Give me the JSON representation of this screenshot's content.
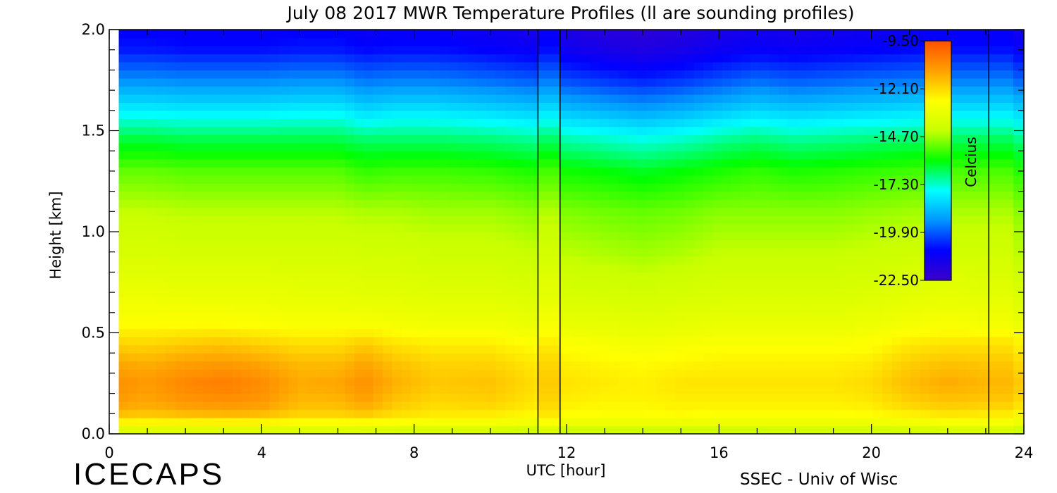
{
  "chart_data": {
    "type": "heatmap",
    "title": "July 08 2017 MWR Temperature Profiles (ll are sounding profiles)",
    "xlabel": "UTC [hour]",
    "ylabel": "Height [km]",
    "xlim": [
      0,
      24
    ],
    "ylim": [
      0,
      2
    ],
    "x_ticks": [
      0,
      4,
      8,
      12,
      16,
      20,
      24
    ],
    "y_ticks": [
      0,
      0.5,
      1,
      1.5,
      2
    ],
    "x_tick_labels": [
      "0",
      "4",
      "8",
      "12",
      "16",
      "20",
      "24"
    ],
    "y_tick_labels": [
      "0.0",
      "0.5",
      "1.0",
      "1.5",
      "2.0"
    ],
    "colorbar": {
      "label": "Celcius",
      "ticks": [
        -9.5,
        -12.1,
        -14.7,
        -17.3,
        -19.9,
        -22.5
      ],
      "tick_labels": [
        "-9.50",
        "-12.10",
        "-14.70",
        "-17.30",
        "-19.90",
        "-22.50"
      ],
      "range": [
        -22.5,
        -9.5
      ],
      "colors": [
        "#3a00c8",
        "#0000ff",
        "#0096ff",
        "#00ffff",
        "#00ff00",
        "#c8ff00",
        "#ffff00",
        "#ffa000",
        "#ff5000"
      ]
    },
    "no_data_x_range": [
      0,
      0.25
    ],
    "sounding_times": [
      11.25,
      11.83,
      23.08
    ],
    "sounding_segment": [
      11.25,
      11.83
    ],
    "profile_times": [
      0,
      1,
      2,
      3,
      4,
      5,
      6,
      6.7,
      7.5,
      8.5,
      10,
      11.25,
      13,
      14,
      15,
      16,
      17,
      18,
      19,
      20,
      21,
      22,
      23.08
    ],
    "heights": [
      0,
      0.05,
      0.1,
      0.15,
      0.25,
      0.35,
      0.45,
      0.55,
      0.7,
      0.9,
      1.1,
      1.3,
      1.45,
      1.6,
      1.75,
      1.9,
      2.0
    ],
    "temperature_profiles": [
      [
        -14.2,
        -12.8,
        -11.6,
        -11.0,
        -10.7,
        -11.2,
        -12.0,
        -12.8,
        -13.3,
        -13.9,
        -14.4,
        -15.2,
        -16.3,
        -17.8,
        -19.3,
        -20.6,
        -21.0
      ],
      [
        -14.2,
        -12.8,
        -11.8,
        -11.3,
        -11.0,
        -11.4,
        -12.1,
        -12.8,
        -13.3,
        -13.9,
        -14.4,
        -15.2,
        -16.3,
        -17.8,
        -19.3,
        -20.6,
        -21.0
      ],
      [
        -14.2,
        -12.8,
        -11.6,
        -11.0,
        -10.6,
        -11.1,
        -11.9,
        -12.8,
        -13.4,
        -14.0,
        -14.5,
        -15.3,
        -16.4,
        -17.9,
        -19.4,
        -20.7,
        -21.1
      ],
      [
        -14.2,
        -12.8,
        -11.5,
        -10.9,
        -10.4,
        -11.0,
        -11.8,
        -12.8,
        -13.4,
        -14.0,
        -14.5,
        -15.3,
        -16.4,
        -17.9,
        -19.4,
        -20.7,
        -21.1
      ],
      [
        -14.2,
        -12.8,
        -11.6,
        -11.0,
        -10.7,
        -11.2,
        -12.0,
        -12.9,
        -13.4,
        -14.0,
        -14.5,
        -15.3,
        -16.4,
        -17.9,
        -19.4,
        -20.7,
        -21.1
      ],
      [
        -14.2,
        -12.9,
        -12.0,
        -11.6,
        -11.3,
        -11.6,
        -12.2,
        -13.0,
        -13.5,
        -14.0,
        -14.5,
        -15.3,
        -16.4,
        -17.8,
        -19.3,
        -20.6,
        -21.0
      ],
      [
        -14.2,
        -12.9,
        -12.0,
        -11.6,
        -11.2,
        -11.6,
        -12.2,
        -13.0,
        -13.5,
        -14.0,
        -14.5,
        -15.3,
        -16.4,
        -17.8,
        -19.3,
        -20.6,
        -21.0
      ],
      [
        -14.2,
        -12.9,
        -11.8,
        -11.2,
        -10.8,
        -11.2,
        -11.9,
        -13.0,
        -13.6,
        -14.1,
        -14.6,
        -15.6,
        -16.6,
        -18.2,
        -19.6,
        -20.8,
        -21.2
      ],
      [
        -14.3,
        -13.0,
        -12.2,
        -11.8,
        -11.4,
        -11.7,
        -12.3,
        -13.1,
        -13.6,
        -14.1,
        -14.6,
        -15.5,
        -16.6,
        -18.0,
        -19.5,
        -20.7,
        -21.1
      ],
      [
        -14.4,
        -13.1,
        -12.4,
        -12.1,
        -11.8,
        -12.0,
        -12.5,
        -13.2,
        -13.7,
        -14.2,
        -14.7,
        -15.5,
        -16.6,
        -18.0,
        -19.5,
        -20.7,
        -21.1
      ],
      [
        -14.4,
        -13.1,
        -12.4,
        -12.0,
        -11.7,
        -12.0,
        -12.5,
        -13.2,
        -13.7,
        -14.2,
        -14.7,
        -15.6,
        -16.7,
        -18.2,
        -19.7,
        -20.9,
        -21.3
      ],
      [
        -14.6,
        -13.3,
        -12.7,
        -12.4,
        -12.2,
        -12.4,
        -12.8,
        -13.4,
        -13.9,
        -14.4,
        -14.9,
        -15.8,
        -16.9,
        -18.4,
        -19.9,
        -21.1,
        -21.5
      ],
      [
        -14.6,
        -13.3,
        -12.8,
        -12.6,
        -12.4,
        -12.6,
        -13.0,
        -13.5,
        -14.0,
        -14.6,
        -15.1,
        -16.0,
        -17.2,
        -18.8,
        -20.3,
        -21.5,
        -21.9
      ],
      [
        -14.6,
        -13.3,
        -12.8,
        -12.6,
        -12.5,
        -12.7,
        -13.1,
        -13.6,
        -14.1,
        -14.7,
        -15.2,
        -16.2,
        -17.4,
        -19.0,
        -20.5,
        -21.7,
        -22.1
      ],
      [
        -14.6,
        -13.3,
        -12.7,
        -12.5,
        -12.3,
        -12.6,
        -13.0,
        -13.5,
        -14.0,
        -14.6,
        -15.1,
        -16.0,
        -17.2,
        -18.8,
        -20.3,
        -21.5,
        -21.9
      ],
      [
        -14.6,
        -13.3,
        -12.8,
        -12.5,
        -12.3,
        -12.5,
        -12.9,
        -13.4,
        -13.9,
        -14.4,
        -14.9,
        -15.8,
        -16.9,
        -18.5,
        -20.0,
        -21.2,
        -21.6
      ],
      [
        -14.6,
        -13.3,
        -12.8,
        -12.5,
        -12.3,
        -12.5,
        -12.9,
        -13.4,
        -13.9,
        -14.4,
        -14.9,
        -15.6,
        -16.7,
        -18.2,
        -19.7,
        -21.0,
        -21.4
      ],
      [
        -14.5,
        -13.3,
        -12.8,
        -12.5,
        -12.3,
        -12.5,
        -12.9,
        -13.4,
        -13.9,
        -14.4,
        -14.9,
        -15.8,
        -16.9,
        -18.4,
        -19.9,
        -21.1,
        -21.5
      ],
      [
        -14.5,
        -13.3,
        -12.8,
        -12.5,
        -12.3,
        -12.5,
        -12.9,
        -13.4,
        -13.9,
        -14.4,
        -14.9,
        -15.7,
        -16.8,
        -18.3,
        -19.8,
        -21.0,
        -21.4
      ],
      [
        -14.5,
        -13.3,
        -12.7,
        -12.4,
        -12.1,
        -12.4,
        -12.8,
        -13.3,
        -13.8,
        -14.3,
        -14.8,
        -15.6,
        -16.7,
        -18.2,
        -19.7,
        -20.9,
        -21.3
      ],
      [
        -14.4,
        -13.2,
        -12.5,
        -12.0,
        -11.6,
        -11.9,
        -12.4,
        -13.1,
        -13.6,
        -14.2,
        -14.7,
        -15.5,
        -16.6,
        -18.1,
        -19.6,
        -20.8,
        -21.2
      ],
      [
        -14.4,
        -13.1,
        -12.3,
        -11.8,
        -11.3,
        -11.7,
        -12.3,
        -13.0,
        -13.5,
        -14.1,
        -14.6,
        -15.4,
        -16.5,
        -18.0,
        -19.5,
        -20.7,
        -21.1
      ],
      [
        -14.4,
        -13.1,
        -12.4,
        -11.9,
        -11.5,
        -11.8,
        -12.3,
        -13.1,
        -13.6,
        -14.1,
        -14.6,
        -15.4,
        -16.5,
        -18.0,
        -19.5,
        -20.7,
        -21.1
      ]
    ]
  },
  "footer": {
    "logo_text": "ICECAPS",
    "credit": "SSEC - Univ of Wisc"
  }
}
